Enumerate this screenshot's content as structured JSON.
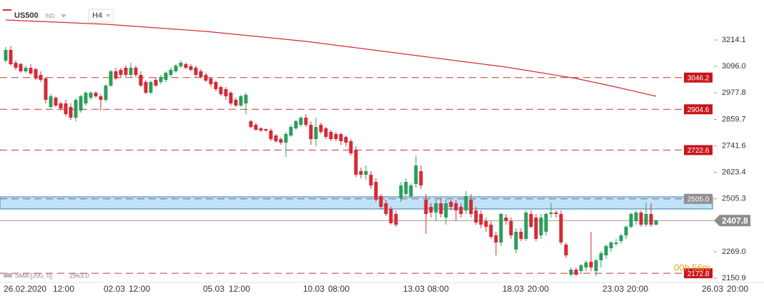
{
  "header": {
    "symbol": "US500",
    "class": "IND",
    "timeframe": "H4"
  },
  "chart_data": {
    "type": "candlestick",
    "ohlc": [
      [
        3121.8,
        3182.3,
        3112.3,
        3169.6
      ],
      [
        3169.6,
        3185.5,
        3099.6,
        3105.9
      ],
      [
        3112.3,
        3121.8,
        3080.5,
        3090.0
      ],
      [
        3105.9,
        3112.3,
        3067.7,
        3074.1
      ],
      [
        3074.1,
        3099.6,
        3067.7,
        3090.0
      ],
      [
        3090.0,
        3105.9,
        3058.2,
        3064.5
      ],
      [
        3083.7,
        3090.0,
        3035.9,
        3042.3
      ],
      [
        3058.2,
        3074.1,
        3026.4,
        3035.9
      ],
      [
        3042.3,
        3048.6,
        2930.9,
        2946.8
      ],
      [
        2915.0,
        2972.2,
        2908.6,
        2962.7
      ],
      [
        2956.3,
        2962.7,
        2915.0,
        2921.3
      ],
      [
        2930.9,
        2937.3,
        2899.0,
        2908.6
      ],
      [
        2930.9,
        2946.8,
        2873.6,
        2883.1
      ],
      [
        2915.0,
        2930.9,
        2857.7,
        2867.2
      ],
      [
        2867.2,
        2953.1,
        2851.3,
        2946.8
      ],
      [
        2899.0,
        2969.1,
        2889.5,
        2962.7
      ],
      [
        2930.9,
        2985.0,
        2921.3,
        2978.6
      ],
      [
        2956.3,
        2985.0,
        2946.8,
        2978.6
      ],
      [
        2978.6,
        2985.0,
        2956.3,
        2962.7
      ],
      [
        2962.7,
        2972.2,
        2899.0,
        2946.8
      ],
      [
        2946.8,
        3016.8,
        2937.3,
        3010.4
      ],
      [
        3010.4,
        3080.5,
        3004.1,
        3074.1
      ],
      [
        3074.1,
        3090.0,
        3035.9,
        3042.3
      ],
      [
        3080.5,
        3090.0,
        3048.6,
        3058.2
      ],
      [
        3090.0,
        3099.6,
        3048.6,
        3058.2
      ],
      [
        3058.2,
        3112.3,
        3048.6,
        3090.0
      ],
      [
        3090.0,
        3099.6,
        3048.6,
        3058.2
      ],
      [
        3058.2,
        3074.1,
        3004.1,
        3010.4
      ],
      [
        3026.4,
        3035.9,
        2972.2,
        2978.6
      ],
      [
        2978.6,
        3032.7,
        2972.2,
        3026.4
      ],
      [
        3035.9,
        3048.6,
        3004.1,
        3010.4
      ],
      [
        3026.4,
        3058.2,
        3016.8,
        3048.6
      ],
      [
        3035.9,
        3074.1,
        3026.4,
        3067.7
      ],
      [
        3058.2,
        3090.0,
        3048.6,
        3080.5
      ],
      [
        3074.1,
        3105.9,
        3067.7,
        3099.6
      ],
      [
        3096.4,
        3121.8,
        3090.0,
        3112.3
      ],
      [
        3105.9,
        3112.3,
        3083.7,
        3090.0
      ],
      [
        3096.4,
        3105.9,
        3074.1,
        3080.5
      ],
      [
        3090.0,
        3099.6,
        3048.6,
        3058.2
      ],
      [
        3074.1,
        3083.7,
        3042.3,
        3048.6
      ],
      [
        3058.2,
        3067.7,
        3026.4,
        3032.7
      ],
      [
        3042.3,
        3048.6,
        3004.1,
        3016.8
      ],
      [
        3026.4,
        3032.7,
        2985.0,
        2994.5
      ],
      [
        3004.1,
        3010.4,
        2962.7,
        2972.2
      ],
      [
        2994.5,
        3004.1,
        2946.8,
        2962.7
      ],
      [
        2978.6,
        2985.0,
        2921.3,
        2930.9
      ],
      [
        2946.8,
        2956.3,
        2915.0,
        2921.3
      ],
      [
        2921.3,
        2969.1,
        2915.0,
        2962.7
      ],
      [
        2930.9,
        2978.6,
        2883.1,
        2969.1
      ],
      [
        2851.3,
        2857.7,
        2819.5,
        2825.8
      ],
      [
        2835.4,
        2844.9,
        2809.9,
        2813.1
      ],
      [
        2819.5,
        2825.8,
        2803.5,
        2809.9
      ],
      [
        2816.3,
        2819.5,
        2803.5,
        2809.9
      ],
      [
        2809.9,
        2819.5,
        2762.2,
        2771.7
      ],
      [
        2787.6,
        2794.0,
        2755.8,
        2762.2
      ],
      [
        2771.7,
        2781.3,
        2746.3,
        2755.8
      ],
      [
        2755.8,
        2803.5,
        2692.1,
        2794.0
      ],
      [
        2787.6,
        2835.4,
        2781.3,
        2825.8
      ],
      [
        2819.5,
        2857.7,
        2813.1,
        2851.3
      ],
      [
        2835.4,
        2873.6,
        2825.8,
        2867.2
      ],
      [
        2867.2,
        2883.1,
        2825.8,
        2835.4
      ],
      [
        2835.4,
        2851.3,
        2746.3,
        2771.7
      ],
      [
        2771.7,
        2867.2,
        2739.9,
        2825.8
      ],
      [
        2835.4,
        2844.9,
        2794.0,
        2803.5
      ],
      [
        2819.5,
        2825.8,
        2771.7,
        2781.3
      ],
      [
        2803.5,
        2813.1,
        2762.2,
        2771.7
      ],
      [
        2794.0,
        2803.5,
        2762.2,
        2771.7
      ],
      [
        2794.0,
        2800.4,
        2746.3,
        2762.2
      ],
      [
        2781.3,
        2787.6,
        2739.9,
        2755.8
      ],
      [
        2762.2,
        2771.7,
        2698.5,
        2708.0
      ],
      [
        2724.0,
        2739.9,
        2603.0,
        2612.6
      ],
      [
        2628.5,
        2644.4,
        2596.7,
        2612.6
      ],
      [
        2612.6,
        2654.0,
        2590.3,
        2628.5
      ],
      [
        2612.6,
        2628.5,
        2548.9,
        2564.8
      ],
      [
        2580.7,
        2596.7,
        2491.6,
        2501.2
      ],
      [
        2517.1,
        2526.6,
        2459.8,
        2469.3
      ],
      [
        2485.2,
        2501.2,
        2427.9,
        2437.5
      ],
      [
        2459.8,
        2469.3,
        2389.8,
        2396.1
      ],
      [
        2437.5,
        2453.4,
        2380.2,
        2389.8
      ],
      [
        2507.5,
        2580.7,
        2491.6,
        2564.8
      ],
      [
        2526.6,
        2596.7,
        2517.1,
        2580.7
      ],
      [
        2517.1,
        2574.4,
        2507.5,
        2564.8
      ],
      [
        2571.2,
        2698.5,
        2555.3,
        2654.0
      ],
      [
        2628.5,
        2654.0,
        2548.9,
        2564.8
      ],
      [
        2501.2,
        2526.6,
        2348.4,
        2437.5
      ],
      [
        2469.3,
        2485.2,
        2421.6,
        2443.9
      ],
      [
        2443.9,
        2501.2,
        2405.7,
        2485.2
      ],
      [
        2485.2,
        2507.5,
        2421.6,
        2437.5
      ],
      [
        2421.6,
        2501.2,
        2389.8,
        2485.2
      ],
      [
        2491.6,
        2501.2,
        2453.4,
        2469.3
      ],
      [
        2485.2,
        2501.2,
        2405.7,
        2453.4
      ],
      [
        2469.3,
        2485.2,
        2421.6,
        2437.5
      ],
      [
        2453.4,
        2539.4,
        2437.5,
        2517.1
      ],
      [
        2501.2,
        2526.6,
        2421.6,
        2437.5
      ],
      [
        2453.4,
        2469.3,
        2389.8,
        2399.3
      ],
      [
        2437.5,
        2453.4,
        2373.8,
        2389.8
      ],
      [
        2405.7,
        2421.6,
        2358.0,
        2380.2
      ],
      [
        2389.8,
        2405.7,
        2326.1,
        2335.6
      ],
      [
        2342.1,
        2358.0,
        2252.9,
        2310.2
      ],
      [
        2310.2,
        2443.9,
        2294.3,
        2437.5
      ],
      [
        2421.6,
        2437.5,
        2389.8,
        2405.7
      ],
      [
        2405.7,
        2421.6,
        2326.1,
        2342.1
      ],
      [
        2278.4,
        2373.8,
        2262.4,
        2358.0
      ],
      [
        2358.0,
        2373.8,
        2316.6,
        2326.1
      ],
      [
        2326.1,
        2453.4,
        2316.6,
        2443.9
      ],
      [
        2437.5,
        2453.4,
        2373.8,
        2380.2
      ],
      [
        2421.6,
        2437.5,
        2316.6,
        2326.1
      ],
      [
        2342.1,
        2437.5,
        2326.1,
        2421.6
      ],
      [
        2358.0,
        2443.9,
        2342.1,
        2437.5
      ],
      [
        2437.5,
        2485.2,
        2421.6,
        2443.9
      ],
      [
        2443.9,
        2453.4,
        2421.6,
        2437.5
      ],
      [
        2437.5,
        2453.4,
        2300.6,
        2310.2
      ],
      [
        2300.6,
        2310.2,
        2240.2,
        2252.9
      ],
      [
        2166.9,
        2198.8,
        2157.4,
        2189.2
      ],
      [
        2189.2,
        2198.8,
        2160.6,
        2166.9
      ],
      [
        2182.9,
        2214.7,
        2166.9,
        2208.3
      ],
      [
        2198.8,
        2230.6,
        2182.9,
        2221.1
      ],
      [
        2224.3,
        2358.0,
        2182.9,
        2198.8
      ],
      [
        2182.9,
        2237.0,
        2160.6,
        2230.6
      ],
      [
        2230.6,
        2272.0,
        2198.8,
        2262.4
      ],
      [
        2252.9,
        2300.6,
        2237.0,
        2294.3
      ],
      [
        2284.7,
        2316.6,
        2268.8,
        2310.2
      ],
      [
        2303.8,
        2326.1,
        2294.3,
        2310.2
      ],
      [
        2316.6,
        2348.4,
        2303.8,
        2342.1
      ],
      [
        2342.1,
        2386.6,
        2326.1,
        2380.2
      ],
      [
        2380.2,
        2443.9,
        2373.8,
        2437.5
      ],
      [
        2405.7,
        2453.4,
        2389.8,
        2443.9
      ],
      [
        2443.9,
        2453.4,
        2380.2,
        2389.8
      ],
      [
        2389.8,
        2485.2,
        2380.2,
        2437.5
      ],
      [
        2437.5,
        2485.2,
        2380.2,
        2389.8
      ],
      [
        2389.8,
        2412.0,
        2386.6,
        2407.8
      ]
    ],
    "up_color": "#2a9d5c",
    "down_color": "#d42a36",
    "ylim": [
      2119.1,
      3392.4
    ],
    "yticks": [
      3214.1,
      {
        "value": 3096,
        "label": "3096.0"
      },
      2977.8,
      2859.7,
      2741.6,
      2623.4,
      2505.3,
      {
        "value": 2269,
        "label": "2269.0"
      },
      2150.9
    ],
    "sma": {
      "name": "SMA [200, 0]",
      "color": "#d42a36",
      "x": [
        0,
        20,
        40,
        60,
        80,
        100,
        114,
        122,
        130
      ],
      "values": [
        3303.3,
        3284.2,
        3252.4,
        3207.8,
        3150.5,
        3093.2,
        3042.3,
        3004.1,
        2963.0
      ],
      "last": {
        "value": 2963,
        "label": "2963.0"
      }
    },
    "levels": [
      3046.2,
      2904.6,
      2722.6,
      {
        "value": 2505,
        "label": "2505.0"
      },
      2172.8
    ],
    "zone": [
      2459.8,
      2513.9
    ],
    "current": 2407.8,
    "x_labels": [
      "26.02.2020",
      "12:00",
      "02.03",
      "12:00",
      "05.03",
      "12:00",
      "10.03",
      "08:00",
      "13.03",
      "08:00",
      "18.03",
      "20:00",
      "23.03",
      "20:00",
      "26.03",
      "20:00"
    ],
    "countdown": "00h 56m"
  }
}
